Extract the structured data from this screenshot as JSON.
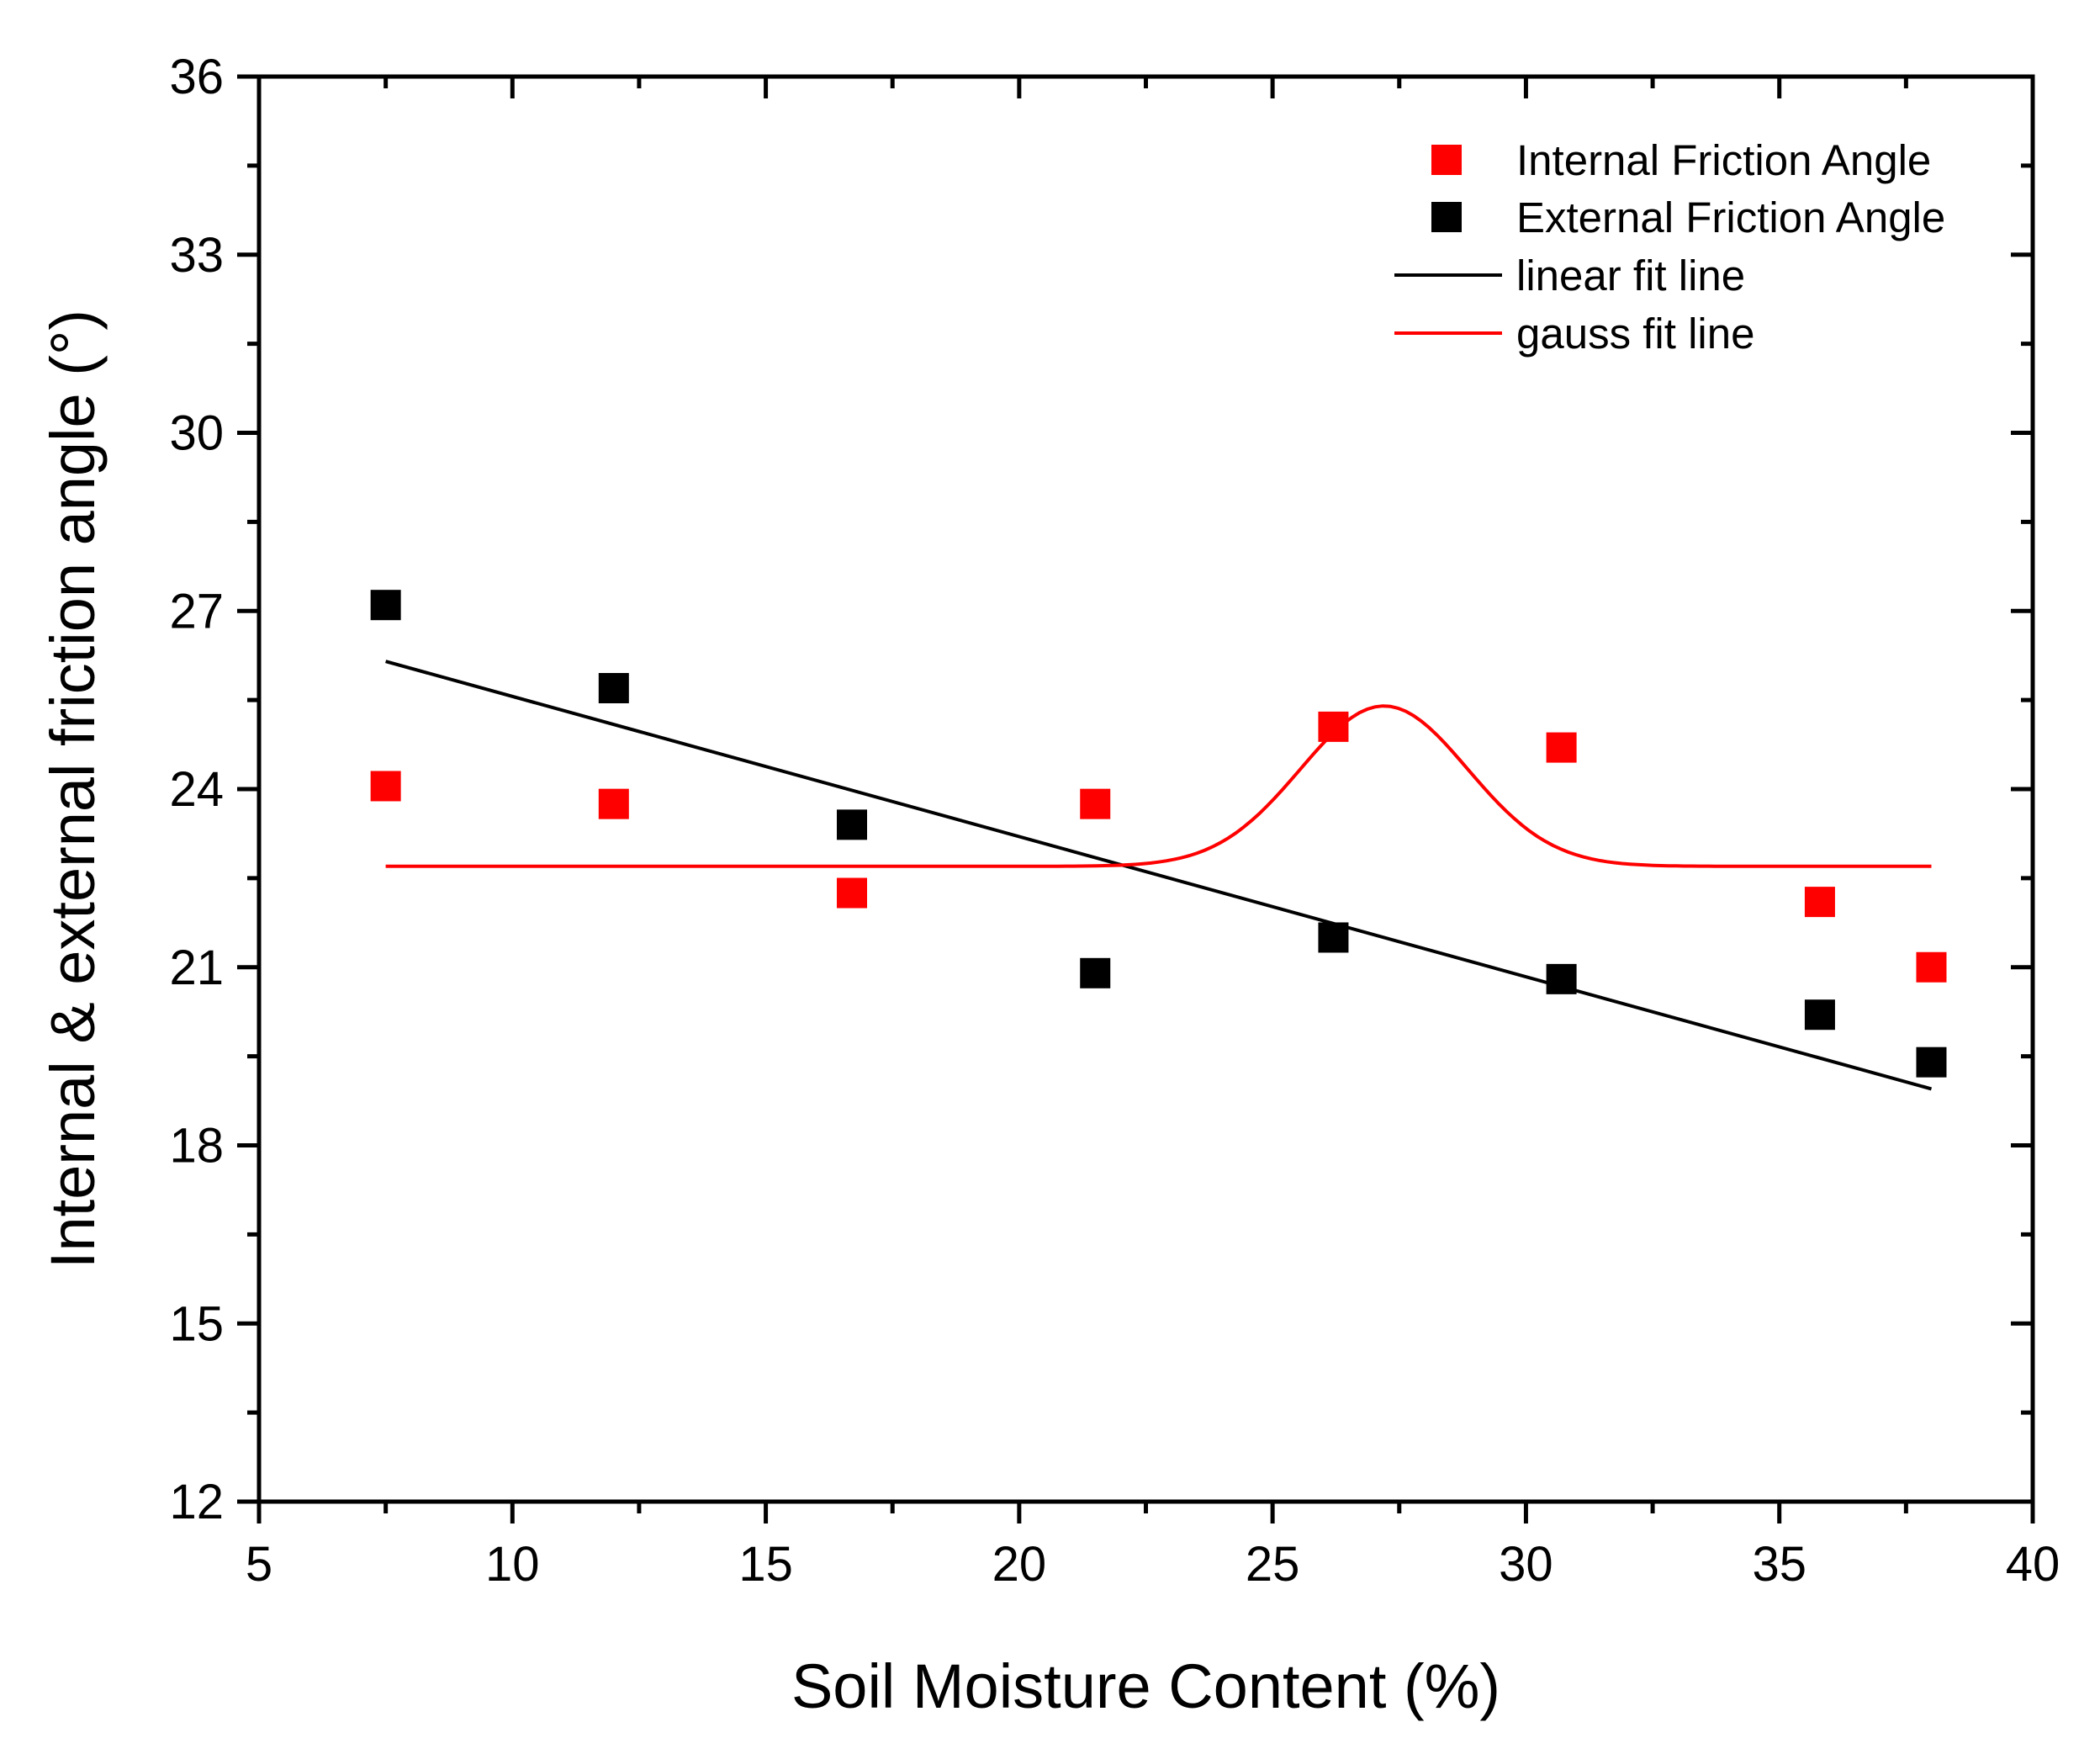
{
  "chart_data": {
    "type": "scatter",
    "title": "",
    "xlabel": "Soil Moisture Content (%)",
    "ylabel": "Internal & external friction angle (°)",
    "xlim": [
      5,
      40
    ],
    "ylim": [
      12,
      36
    ],
    "xticks": [
      5,
      10,
      15,
      20,
      25,
      30,
      35,
      40
    ],
    "yticks": [
      12,
      15,
      18,
      21,
      24,
      27,
      30,
      33,
      36
    ],
    "x_tick_labels": [
      "5",
      "10",
      "15",
      "20",
      "25",
      "30",
      "35",
      "40"
    ],
    "y_tick_labels": [
      "12",
      "15",
      "18",
      "21",
      "24",
      "27",
      "30",
      "33",
      "36"
    ],
    "grid": false,
    "legend_position": "top-right",
    "series": [
      {
        "name": "Internal Friction Angle",
        "kind": "scatter",
        "marker": "square",
        "color": "#ff0000",
        "x": [
          7.5,
          12.0,
          16.7,
          21.5,
          26.2,
          30.7,
          35.8,
          38.0
        ],
        "y": [
          24.05,
          23.75,
          22.25,
          23.75,
          25.05,
          24.7,
          22.1,
          21.0
        ]
      },
      {
        "name": "External Friction Angle",
        "kind": "scatter",
        "marker": "square",
        "color": "#000000",
        "x": [
          7.5,
          12.0,
          16.7,
          21.5,
          26.2,
          30.7,
          35.8,
          38.0
        ],
        "y": [
          27.1,
          25.7,
          23.4,
          20.9,
          21.5,
          20.8,
          20.2,
          19.4
        ]
      },
      {
        "name": "linear fit line",
        "kind": "line",
        "color": "#000000",
        "fit": "linear",
        "x": [
          7.5,
          38.0
        ],
        "y": [
          26.15,
          18.95
        ]
      },
      {
        "name": "gauss fit line",
        "kind": "line",
        "color": "#ff0000",
        "fit": "gauss",
        "params": {
          "y0": 22.7,
          "A": 2.7,
          "xc": 27.2,
          "w": 3.3
        },
        "x_range": [
          7.5,
          38.0
        ]
      }
    ]
  }
}
